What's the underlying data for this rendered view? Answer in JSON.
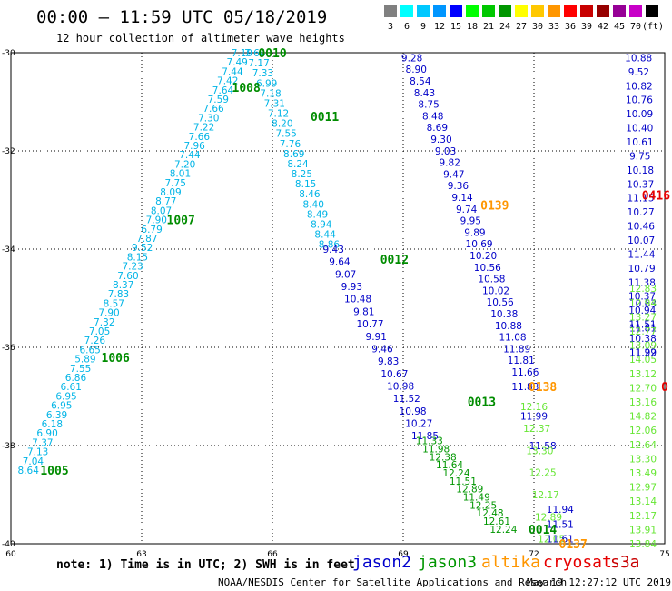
{
  "title": "00:00 – 11:59 UTC 05/18/2019",
  "subtitle": "12 hour collection of altimeter wave heights",
  "scale": {
    "colors": [
      "#808080",
      "#00ffff",
      "#00c8ff",
      "#0096ff",
      "#0000ff",
      "#00ff00",
      "#00c800",
      "#009600",
      "#ffff00",
      "#ffc800",
      "#ff9600",
      "#ff0000",
      "#c80000",
      "#960000",
      "#960096",
      "#c800c8",
      "#000000"
    ],
    "labels": [
      "3",
      "6",
      "9",
      "12",
      "15",
      "18",
      "21",
      "24",
      "27",
      "30",
      "33",
      "36",
      "39",
      "42",
      "45",
      "70",
      "(ft)"
    ]
  },
  "note": "note: 1) Time is in UTC; 2) SWH is in feet",
  "legend": [
    {
      "name": "jason2",
      "color": "#0000cc"
    },
    {
      "name": "jason3",
      "color": "#009600"
    },
    {
      "name": "altika",
      "color": "#ff9600"
    },
    {
      "name": "cryosat",
      "color": "#e60000"
    },
    {
      "name": "s3a",
      "color": "#c80000"
    }
  ],
  "credit": "NOAA/NESDIS Center for Satellite Applications and Research",
  "timestamp": "May 19 12:27:12 UTC 2019",
  "chart_data": {
    "type": "scatter",
    "xlim": [
      60,
      75
    ],
    "ylim": [
      -40,
      -30
    ],
    "xticks": [
      "60",
      "63",
      "66",
      "69",
      "72",
      "75"
    ],
    "yticks": [
      "-30",
      "-32",
      "-34",
      "-36",
      "-38",
      "-40"
    ],
    "xtick_values": [
      60,
      63,
      66,
      69,
      72,
      75
    ],
    "ytick_values": [
      -30,
      -32,
      -34,
      -36,
      -38,
      -40
    ],
    "grid": true,
    "series": [
      {
        "name": "jason3",
        "color": "#00b4e6",
        "start": [
          60.4,
          -38.5
        ],
        "end": [
          65.3,
          -30.0
        ],
        "values": [
          "8.64",
          "7.04",
          "7.13",
          "7.37",
          "6.90",
          "6.18",
          "6.39",
          "6.95",
          "6.95",
          "6.61",
          "6.86",
          "7.55",
          "5.89",
          "6.65",
          "7.26",
          "7.05",
          "7.32",
          "7.90",
          "8.57",
          "7.83",
          "8.37",
          "7.60",
          "7.23",
          "8.15",
          "9.52",
          "7.87",
          "6.79",
          "7.90",
          "8.07",
          "8.77",
          "8.09",
          "7.75",
          "8.01",
          "7.20",
          "7.44",
          "7.96",
          "7.66",
          "7.22",
          "7.30",
          "7.66",
          "7.59",
          "7.64",
          "7.42",
          "7.44",
          "7.49",
          "7.19"
        ]
      },
      {
        "name": "jason3",
        "color": "#00b4e6",
        "start": [
          65.6,
          -30.0
        ],
        "end": [
          67.3,
          -33.9
        ],
        "values": [
          "7.64",
          "7.17",
          "7.33",
          "6.99",
          "7.18",
          "7.31",
          "7.12",
          "8.20",
          "7.55",
          "7.76",
          "8.69",
          "8.24",
          "8.25",
          "8.15",
          "8.46",
          "8.40",
          "8.49",
          "8.94",
          "8.44",
          "8.86"
        ]
      },
      {
        "name": "jason2",
        "color": "#0000c8",
        "start": [
          67.4,
          -34.0
        ],
        "end": [
          69.5,
          -37.8
        ],
        "values": [
          "9.43",
          "9.64",
          "9.07",
          "9.93",
          "10.48",
          "9.81",
          "10.77",
          "9.91",
          "9.46",
          "9.83",
          "10.67",
          "10.98",
          "11.52",
          "10.98",
          "10.27",
          "11.85"
        ]
      },
      {
        "name": "jason2",
        "color": "#009600",
        "start": [
          69.6,
          -37.9
        ],
        "end": [
          71.3,
          -39.7
        ],
        "values": [
          "11.33",
          "11.98",
          "12.38",
          "11.64",
          "12.24",
          "11.51",
          "12.89",
          "11.49",
          "12.25",
          "12.48",
          "12.61",
          "12.24"
        ]
      },
      {
        "name": "jason2",
        "color": "#0000c8",
        "start": [
          69.2,
          -30.1
        ],
        "end": [
          71.8,
          -36.5
        ],
        "values": [
          "9.28",
          "8.90",
          "8.54",
          "8.43",
          "8.75",
          "8.48",
          "8.69",
          "9.30",
          "9.03",
          "9.82",
          "9.47",
          "9.36",
          "9.14",
          "9.74",
          "9.95",
          "9.89",
          "10.69",
          "10.20",
          "10.56",
          "10.58",
          "10.02",
          "10.56",
          "10.38",
          "10.88",
          "11.08",
          "11.89",
          "11.81",
          "11.66"
        ]
      },
      {
        "name": "jason2",
        "color": "#0000c8",
        "start": [
          71.8,
          -36.8
        ],
        "end": [
          72.2,
          -38.0
        ],
        "values": [
          "11.83",
          "11.99",
          "11.58"
        ]
      },
      {
        "name": "jason3",
        "color": "#66e633",
        "start": [
          72.0,
          -37.2
        ],
        "end": [
          72.4,
          -39.9
        ],
        "values": [
          "12.16",
          "12.37",
          "13.30",
          "12.25",
          "12.17",
          "12.89",
          "12.05"
        ]
      },
      {
        "name": "jason2",
        "color": "#0000c8",
        "start": [
          72.6,
          -39.3
        ],
        "end": [
          72.6,
          -39.9
        ],
        "values": [
          "11.94",
          "11.51",
          "11.61"
        ]
      },
      {
        "name": "jason2",
        "color": "#0000c8",
        "start": [
          74.4,
          -30.1
        ],
        "end": [
          74.5,
          -36.1
        ],
        "values": [
          "10.88",
          "9.52",
          "10.82",
          "10.76",
          "10.09",
          "10.40",
          "10.61",
          "9.75",
          "10.18",
          "10.37",
          "11.15",
          "10.27",
          "10.46",
          "10.07",
          "11.44",
          "10.79",
          "11.38",
          "10.37",
          "10.94",
          "11.51",
          "10.38",
          "11.29"
        ]
      },
      {
        "name": "jason2",
        "color": "#0000c8",
        "start": [
          74.5,
          -35.1
        ],
        "end": [
          74.5,
          -36.1
        ],
        "values": [
          "10.63",
          "11.81",
          "11.92"
        ]
      },
      {
        "name": "jason3",
        "color": "#66e633",
        "start": [
          74.5,
          -34.8
        ],
        "end": [
          74.5,
          -40.0
        ],
        "values": [
          "12.83",
          "12.94",
          "13.27",
          "12.77",
          "13.09",
          "14.05",
          "13.12",
          "12.70",
          "13.16",
          "14.82",
          "12.06",
          "12.64",
          "13.30",
          "13.49",
          "12.97",
          "13.14",
          "12.17",
          "13.91",
          "13.84"
        ]
      }
    ],
    "annotations": [
      {
        "text": "0010",
        "color": "#008c00",
        "x": 66.0,
        "y": -30.0
      },
      {
        "text": "1008",
        "color": "#008c00",
        "x": 65.4,
        "y": -30.7
      },
      {
        "text": "0011",
        "color": "#008c00",
        "x": 67.2,
        "y": -31.3
      },
      {
        "text": "1007",
        "color": "#008c00",
        "x": 63.9,
        "y": -33.4
      },
      {
        "text": "0012",
        "color": "#008c00",
        "x": 68.8,
        "y": -34.2
      },
      {
        "text": "1006",
        "color": "#008c00",
        "x": 62.4,
        "y": -36.2
      },
      {
        "text": "0013",
        "color": "#008c00",
        "x": 70.8,
        "y": -37.1
      },
      {
        "text": "1005",
        "color": "#008c00",
        "x": 61.0,
        "y": -38.5
      },
      {
        "text": "0014",
        "color": "#008c00",
        "x": 72.2,
        "y": -39.7
      },
      {
        "text": "0139",
        "color": "#ff9600",
        "x": 71.1,
        "y": -33.1
      },
      {
        "text": "0138",
        "color": "#ff9600",
        "x": 72.2,
        "y": -36.8
      },
      {
        "text": "0137",
        "color": "#ff9600",
        "x": 72.9,
        "y": -40.0
      },
      {
        "text": "0416",
        "color": "#e60000",
        "x": 74.8,
        "y": -32.9
      },
      {
        "text": "0",
        "color": "#e60000",
        "x": 75.0,
        "y": -36.8
      }
    ]
  }
}
